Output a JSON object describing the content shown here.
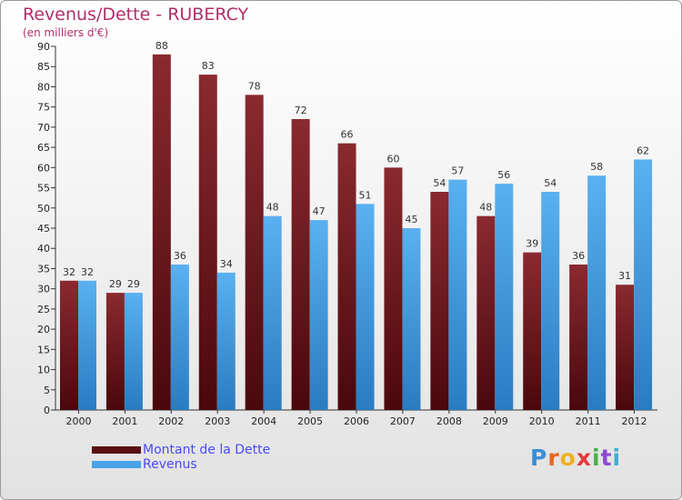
{
  "title": "Revenus/Dette - RUBERCY",
  "subtitle": "(en milliers d'€)",
  "brand": "Proxiti",
  "colors": {
    "debt": "#7a1f24",
    "revenue": "#4aa3e8",
    "title": "#b0306a",
    "legend_text": "#4a4af0"
  },
  "legend": {
    "debt_label": "Montant de la Dette",
    "revenue_label": "Revenus"
  },
  "chart_data": {
    "type": "bar",
    "title": "Revenus/Dette - RUBERCY",
    "subtitle": "(en milliers d'€)",
    "xlabel": "",
    "ylabel": "",
    "ylim": [
      0,
      90
    ],
    "ytick_step": 5,
    "grid": false,
    "legend_position": "bottom-left",
    "categories": [
      "2000",
      "2001",
      "2002",
      "2003",
      "2004",
      "2005",
      "2006",
      "2007",
      "2008",
      "2009",
      "2010",
      "2011",
      "2012"
    ],
    "series": [
      {
        "name": "Montant de la Dette",
        "values": [
          32,
          29,
          88,
          83,
          78,
          72,
          66,
          60,
          54,
          48,
          39,
          36,
          31
        ]
      },
      {
        "name": "Revenus",
        "values": [
          32,
          29,
          36,
          34,
          48,
          47,
          51,
          45,
          57,
          56,
          54,
          58,
          62
        ]
      }
    ]
  }
}
